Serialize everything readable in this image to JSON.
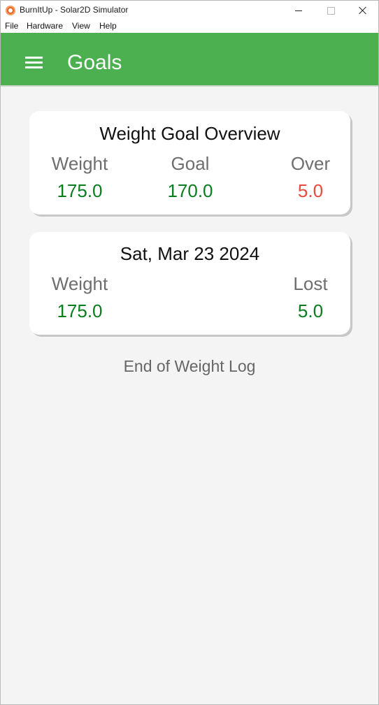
{
  "window": {
    "title": "BurnItUp - Solar2D Simulator"
  },
  "menubar": {
    "items": [
      "File",
      "Hardware",
      "View",
      "Help"
    ]
  },
  "appbar": {
    "title": "Goals",
    "color": "#4caf50",
    "menu_icon": "hamburger-menu-icon"
  },
  "overview_card": {
    "title": "Weight Goal Overview",
    "columns": [
      {
        "label": "Weight",
        "value": "175.0"
      },
      {
        "label": "Goal",
        "value": "170.0"
      },
      {
        "label": "Over",
        "value": "5.0"
      }
    ]
  },
  "log_entries": [
    {
      "date": "Sat, Mar 23 2024",
      "weight_label": "Weight",
      "weight_value": "175.0",
      "lost_label": "Lost",
      "lost_value": "5.0"
    }
  ],
  "footer": {
    "end_text": "End of Weight Log"
  },
  "colors": {
    "value_good": "#0a7d1e",
    "value_bad": "#ec4a3d",
    "label": "#6e6e6e"
  }
}
